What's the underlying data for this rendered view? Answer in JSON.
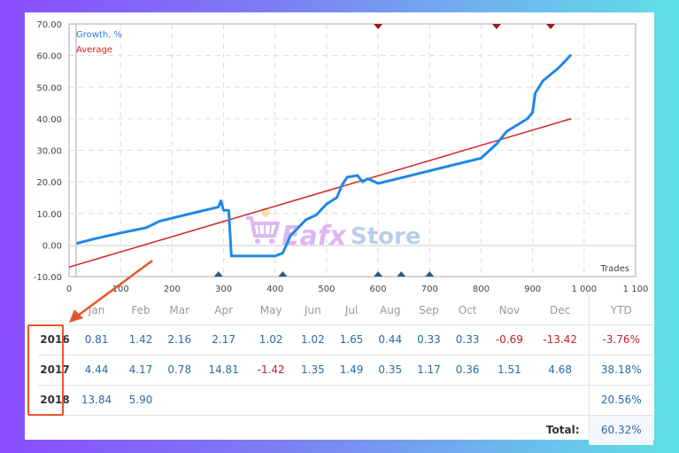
{
  "chart_data": {
    "type": "line",
    "title": "",
    "xlabel": "Trades",
    "ylabel": "",
    "xlim": [
      0,
      1100
    ],
    "ylim": [
      -10,
      70
    ],
    "grid": true,
    "legend_position": "top-left",
    "x_ticks": [
      "0",
      "100",
      "200",
      "300",
      "400",
      "500",
      "600",
      "700",
      "800",
      "900",
      "1 000",
      "1 100"
    ],
    "y_ticks": [
      "70.00",
      "60.00",
      "50.00",
      "40.00",
      "30.00",
      "20.00",
      "10.00",
      "0.00",
      "-10.00"
    ],
    "series": [
      {
        "name": "Growth, %",
        "color": "#1e88e5",
        "x": [
          15,
          50,
          100,
          150,
          175,
          200,
          250,
          290,
          295,
          300,
          310,
          315,
          350,
          400,
          415,
          430,
          460,
          480,
          500,
          520,
          530,
          540,
          560,
          570,
          580,
          600,
          650,
          700,
          750,
          800,
          830,
          850,
          870,
          890,
          900,
          905,
          920,
          950,
          975
        ],
        "y": [
          0.5,
          2.0,
          3.8,
          5.5,
          7.5,
          8.5,
          10.5,
          12.0,
          14.0,
          11.0,
          11.0,
          -3.5,
          -3.5,
          -3.5,
          -2.5,
          3.0,
          8.0,
          9.5,
          13.0,
          15.0,
          19.0,
          21.5,
          22.0,
          20.0,
          21.0,
          19.5,
          21.5,
          23.5,
          25.5,
          27.5,
          32.0,
          36.0,
          38.0,
          40.0,
          42.0,
          48.0,
          52.0,
          56.0,
          60.3
        ]
      },
      {
        "name": "Average",
        "color": "#d42020",
        "x": [
          0,
          975
        ],
        "y": [
          -7.0,
          40.0
        ]
      }
    ],
    "markers": {
      "bottom_deposits": [
        290,
        415,
        600,
        645,
        700
      ],
      "top_withdrawals": [
        600,
        830,
        935
      ]
    }
  },
  "legend": {
    "growth": "Growth, %",
    "average": "Average"
  },
  "axis": {
    "x_title": "Trades"
  },
  "watermark": {
    "brand1": "Eafx",
    "brand2": "Store"
  },
  "table": {
    "headers": [
      "Jan",
      "Feb",
      "Mar",
      "Apr",
      "May",
      "Jun",
      "Jul",
      "Aug",
      "Sep",
      "Oct",
      "Nov",
      "Dec",
      "YTD"
    ],
    "rows": [
      {
        "year": "2016",
        "values": [
          "0.81",
          "1.42",
          "2.16",
          "2.17",
          "1.02",
          "1.02",
          "1.65",
          "0.44",
          "0.33",
          "0.33",
          "-0.69",
          "-13.42"
        ],
        "ytd": "-3.76%"
      },
      {
        "year": "2017",
        "values": [
          "4.44",
          "4.17",
          "0.78",
          "14.81",
          "-1.42",
          "1.35",
          "1.49",
          "0.35",
          "1.17",
          "0.36",
          "1.51",
          "4.68"
        ],
        "ytd": "38.18%"
      },
      {
        "year": "2018",
        "values": [
          "13.84",
          "5.90",
          "",
          "",
          "",
          "",
          "",
          "",
          "",
          "",
          "",
          ""
        ],
        "ytd": "20.56%"
      }
    ],
    "total_label": "Total:",
    "total_value": "60.32%"
  },
  "colors": {
    "growth_line": "#1e88e5",
    "average_line": "#d42020",
    "positive_value": "#2a6aa8",
    "negative_value": "#c0242a",
    "highlight": "#e8552a"
  }
}
